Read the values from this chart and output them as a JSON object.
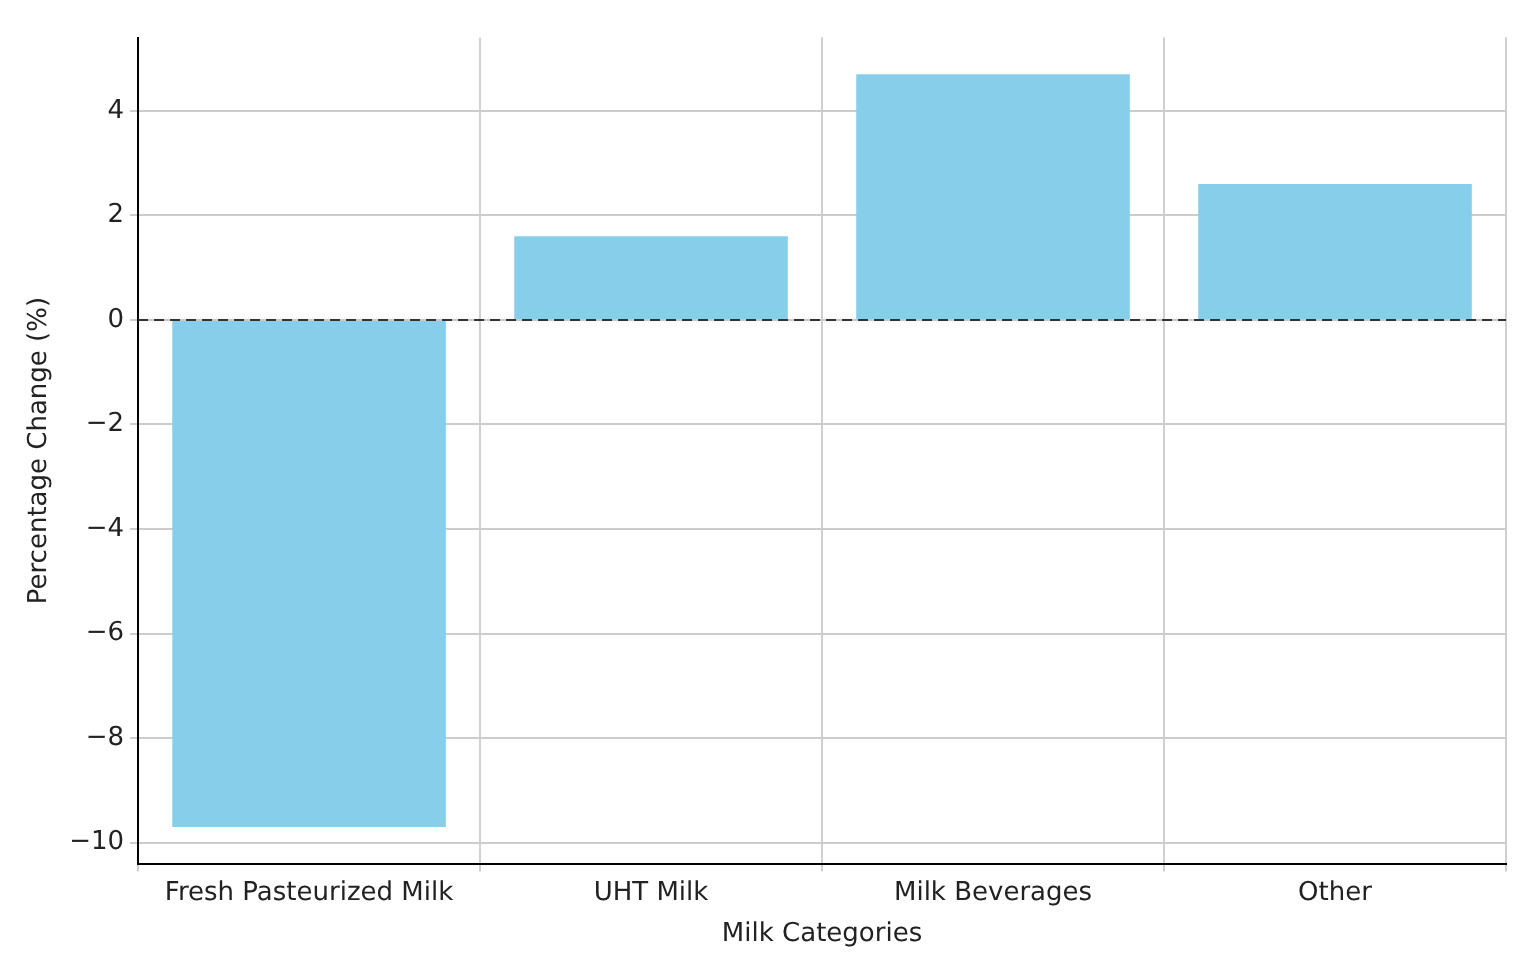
{
  "chart_data": {
    "type": "bar",
    "xlabel": "Milk Categories",
    "ylabel": "Percentage Change (%)",
    "categories": [
      "Fresh Pasteurized Milk",
      "UHT Milk",
      "Milk Beverages",
      "Other"
    ],
    "values": [
      -9.7,
      1.6,
      4.7,
      2.6
    ],
    "color": "#87ceeb",
    "ylim": [
      -10.4,
      5.4
    ],
    "yticks": [
      {
        "value": -10,
        "label": "−10"
      },
      {
        "value": -8,
        "label": "−8"
      },
      {
        "value": -6,
        "label": "−6"
      },
      {
        "value": -4,
        "label": "−4"
      },
      {
        "value": -2,
        "label": "−2"
      },
      0,
      2,
      4
    ],
    "grid": true,
    "ref_lines": [
      {
        "axis": "y",
        "value": 0,
        "color": "#333333",
        "line_style": "dashed"
      }
    ]
  }
}
